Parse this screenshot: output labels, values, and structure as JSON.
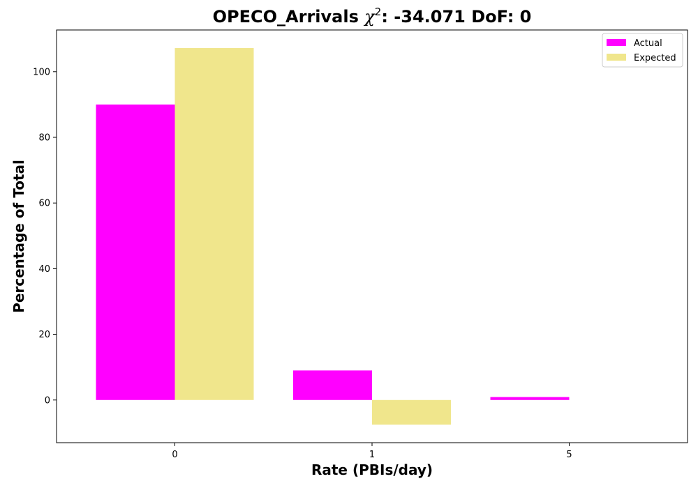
{
  "chart_data": {
    "type": "bar",
    "title_parts": {
      "prefix": "OPECO_Arrivals ",
      "chi": "χ",
      "sup": "2",
      "suffix": ": -34.071 DoF: 0"
    },
    "xlabel": "Rate (PBIs/day)",
    "ylabel": "Percentage of Total",
    "categories": [
      "0",
      "1",
      "5"
    ],
    "series": [
      {
        "name": "Actual",
        "color": "#ff00ff",
        "values": [
          90.0,
          9.0,
          0.9
        ]
      },
      {
        "name": "Expected",
        "color": "#f0e68c",
        "values": [
          107.2,
          -7.5,
          null
        ]
      }
    ],
    "ylim": [
      -13.0,
      112.7
    ],
    "yticks": [
      0,
      20,
      40,
      60,
      80,
      100
    ],
    "legend_position": "top-right",
    "grid": false
  }
}
